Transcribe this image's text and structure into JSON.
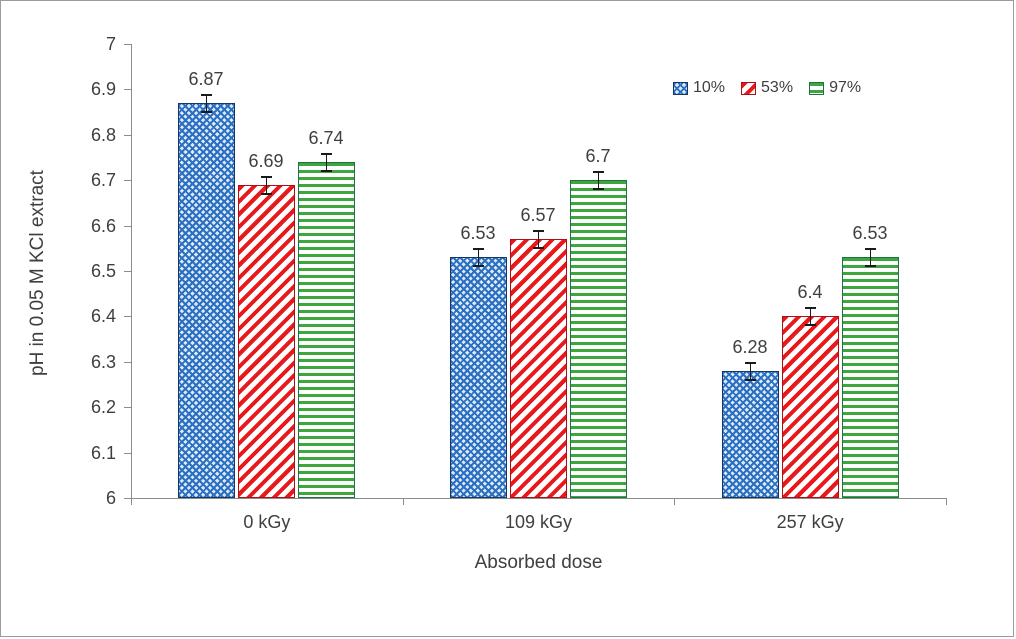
{
  "chart_data": {
    "type": "bar",
    "title": "",
    "xlabel": "Absorbed dose",
    "ylabel": "pH in 0.05 M KCl extract",
    "categories": [
      "0 kGy",
      "109 kGy",
      "257 kGy"
    ],
    "series": [
      {
        "name": "10%",
        "color": "#2b6fc2",
        "border_color": "#17375e",
        "pattern": "diamond",
        "values": [
          6.87,
          6.53,
          6.28
        ],
        "errors": [
          0.02,
          0.02,
          0.02
        ]
      },
      {
        "name": "53%",
        "color": "#e8191c",
        "border_color": "#b00f12",
        "pattern": "diagonal",
        "values": [
          6.69,
          6.57,
          6.4
        ],
        "errors": [
          0.02,
          0.02,
          0.02
        ]
      },
      {
        "name": "97%",
        "color": "#3da63d",
        "border_color": "#1e7145",
        "pattern": "horizontal",
        "values": [
          6.74,
          6.7,
          6.53
        ],
        "errors": [
          0.02,
          0.02,
          0.02
        ]
      }
    ],
    "ylim": [
      6,
      7
    ],
    "ytick_step": 0.1,
    "grid": false,
    "legend_position": "top-right",
    "error_bars": true,
    "data_labels": [
      "6.87",
      "6.69",
      "6.74",
      "6.53",
      "6.57",
      "6.7",
      "6.28",
      "6.4",
      "6.53"
    ],
    "axis_color": "#8c8c8c",
    "text_color": "#3f3f3f"
  }
}
